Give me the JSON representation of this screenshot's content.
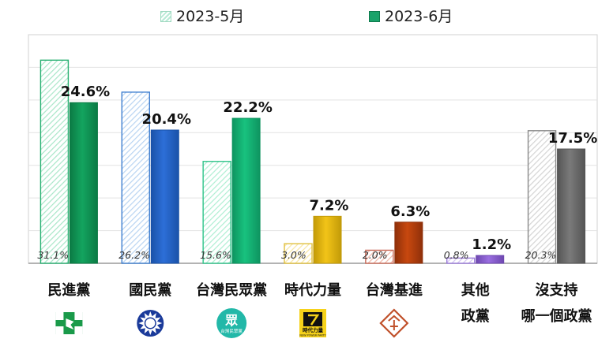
{
  "legend": {
    "may_label": "2023-5月",
    "jun_label": "2023-6月"
  },
  "chart_data": {
    "type": "bar",
    "title": "",
    "xlabel": "",
    "ylabel": "",
    "ylim": [
      0,
      35
    ],
    "grid": true,
    "legend_position": "top",
    "categories": [
      [
        "民進黨"
      ],
      [
        "國民黨"
      ],
      [
        "台灣民眾黨"
      ],
      [
        "時代力量"
      ],
      [
        "台灣基進"
      ],
      [
        "其他",
        "政黨"
      ],
      [
        "沒支持",
        "哪一個政黨"
      ]
    ],
    "series": [
      {
        "name": "2023-5月",
        "values": [
          31.1,
          26.2,
          15.6,
          3.0,
          2.0,
          0.8,
          20.3
        ],
        "labels": [
          "31.1%",
          "26.2%",
          "15.6%",
          "3.0%",
          "2.0%",
          "0.8%",
          "20.3%"
        ]
      },
      {
        "name": "2023-6月",
        "values": [
          24.6,
          20.4,
          22.2,
          7.2,
          6.3,
          1.2,
          17.5
        ],
        "labels": [
          "24.6%",
          "20.4%",
          "22.2%",
          "7.2%",
          "6.3%",
          "1.2%",
          "17.5%"
        ]
      }
    ],
    "colors": {
      "may_stroke": [
        "#29b072",
        "#3f7fd0",
        "#2fc48a",
        "#e0c040",
        "#c86a58",
        "#9a7ad8",
        "#8a8a8a"
      ],
      "may_hatch": [
        "#a8e6c8",
        "#b8d4f2",
        "#aeeed2",
        "#f8e6a0",
        "#f0b8a8",
        "#d4c4f2",
        "#d4d4d4"
      ],
      "jun_fill": [
        "#13a45f",
        "#2d6fd8",
        "#18c27f",
        "#f2c418",
        "#c8480f",
        "#9a6ee0",
        "#7a7a7a"
      ],
      "jun_dark": [
        "#0b7a44",
        "#1a52a8",
        "#0e9460",
        "#c29a08",
        "#8f300a",
        "#6e48b0",
        "#555555"
      ]
    },
    "party_icons": [
      "dpp-logo-icon",
      "kmt-emblem-icon",
      "tpp-logo-icon",
      "npp-logo-icon",
      "tsp-logo-icon",
      "",
      ""
    ],
    "icon_text": {
      "tpp_glyph": "眾",
      "tpp_caption": "台灣民眾黨",
      "npp_caption": "時代力量",
      "npp_sub": "NEW POWER PARTY"
    }
  }
}
